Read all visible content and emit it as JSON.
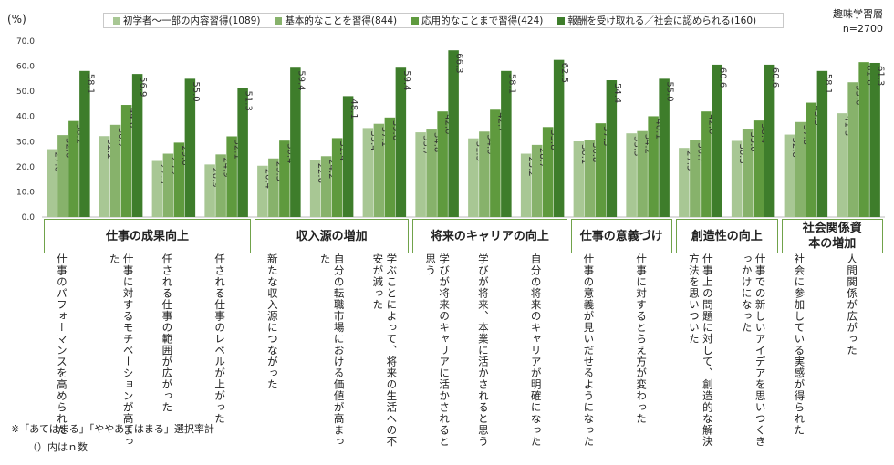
{
  "unit_label": "(%)",
  "sample": {
    "title": "趣味学習層",
    "n": "n=2700"
  },
  "notes": [
    "※「あてはまる」「ややあてはまる」選択率計",
    "（）内はｎ数"
  ],
  "colors": [
    "#a8c794",
    "#87b26b",
    "#5f9a3e",
    "#3e7d2b"
  ],
  "chart_data": {
    "type": "bar",
    "ylim": [
      0,
      70
    ],
    "yticks": [
      "0.0",
      "10.0",
      "20.0",
      "30.0",
      "40.0",
      "50.0",
      "60.0",
      "70.0"
    ],
    "series": [
      {
        "name": "初学者～一部の内容習得(1089)",
        "values": [
          27.0,
          32.2,
          22.3,
          20.9,
          20.4,
          22.6,
          35.4,
          33.7,
          31.3,
          25.2,
          30.1,
          33.3,
          27.5,
          30.3,
          32.8,
          41.3
        ]
      },
      {
        "name": "基本的なことを習得(844)",
        "values": [
          32.6,
          36.7,
          25.2,
          24.9,
          23.3,
          24.2,
          37.1,
          34.8,
          34.0,
          28.7,
          30.8,
          34.2,
          30.7,
          35.0,
          37.8,
          53.6
        ]
      },
      {
        "name": "応用的なことまで習得(424)",
        "values": [
          38.2,
          44.6,
          29.6,
          32.1,
          30.4,
          31.4,
          39.6,
          42.0,
          42.7,
          35.8,
          37.3,
          40.1,
          42.0,
          38.4,
          45.5,
          61.6
        ]
      },
      {
        "name": "報酬を受け取れる／社会に認められる(160)",
        "values": [
          58.1,
          56.9,
          55.0,
          51.3,
          59.4,
          48.1,
          59.4,
          66.3,
          58.1,
          62.5,
          54.4,
          55.0,
          60.6,
          60.6,
          58.1,
          61.3
        ]
      }
    ],
    "groups": [
      {
        "label": "仕事の成果向上",
        "categories": [
          0,
          1,
          2,
          3
        ]
      },
      {
        "label": "収入源の増加",
        "categories": [
          4,
          5,
          6
        ]
      },
      {
        "label": "将来のキャリアの向上",
        "categories": [
          7,
          8,
          9
        ]
      },
      {
        "label": "仕事の意義づけ",
        "categories": [
          10,
          11
        ]
      },
      {
        "label": "創造性の向上",
        "categories": [
          12,
          13
        ]
      },
      {
        "label": "社会関係資本の増加",
        "categories": [
          14,
          15
        ]
      }
    ],
    "categories": [
      "仕事のパフォーマンスを高められた",
      "仕事に対するモチベーションが高まった",
      "任される仕事の範囲が広がった",
      "任される仕事のレベルが上がった",
      "新たな収入源につながった",
      "自分の転職市場における価値が高まった",
      "学ぶことによって、将来の生活への不安が減った",
      "学びが将来のキャリアに活かされると思う",
      "学びが将来、本業に活かされると思う",
      "自分の将来のキャリアが明確になった",
      "仕事の意義が見いだせるようになった",
      "仕事に対するとらえ方が変わった",
      "仕事上の問題に対して、創造的な解決方法を思いついた",
      "仕事での新しいアイデアを思いつくきっかけになった",
      "社会に参加している実感が得られた",
      "人間関係が広がった"
    ]
  }
}
